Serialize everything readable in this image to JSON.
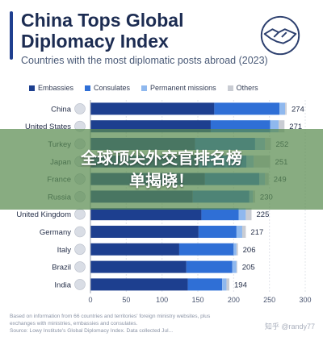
{
  "header": {
    "title": "China Tops Global Diplomacy Index",
    "subtitle": "Countries with the most diplomatic posts abroad (2023)"
  },
  "icons": {
    "header": "handshake-icon"
  },
  "colors": {
    "embassies": "#1d3f8f",
    "consulates": "#2f6fd6",
    "missions": "#8fb8ee",
    "others": "#c9ccd3",
    "title": "#1c2c52"
  },
  "banner": {
    "line1": "全球顶尖外交官排名榜",
    "line2": "单揭晓！"
  },
  "footnote": {
    "line1": "Based on information from 66 countries and territories' foreign ministry websites, plus",
    "line2": "exchanges with ministries, embassies and consulates.",
    "line3": "Source: Lowy Institute's Global Diplomacy Index. Data collected Jul...",
    "watermark": "知乎 @randy77"
  },
  "chart_data": {
    "type": "bar",
    "orientation": "horizontal",
    "stacked": true,
    "title": "China Tops Global Diplomacy Index",
    "subtitle": "Countries with the most diplomatic posts abroad (2023)",
    "xlim": [
      0,
      300
    ],
    "xticks": [
      0,
      50,
      100,
      150,
      200,
      250,
      300
    ],
    "grid": true,
    "legend_position": "top",
    "categories": [
      "China",
      "United States",
      "Turkey",
      "Japan",
      "France",
      "Russia",
      "United Kingdom",
      "Germany",
      "Italy",
      "Brazil",
      "India"
    ],
    "totals": [
      274,
      271,
      252,
      251,
      249,
      230,
      225,
      217,
      206,
      205,
      194
    ],
    "series": [
      {
        "name": "Embassies",
        "values": [
          173,
          168,
          146,
          152,
          160,
          143,
          155,
          151,
          124,
          134,
          136
        ]
      },
      {
        "name": "Consulates",
        "values": [
          91,
          83,
          84,
          66,
          76,
          79,
          52,
          53,
          76,
          64,
          48
        ]
      },
      {
        "name": "Permanent missions",
        "values": [
          8,
          12,
          14,
          10,
          8,
          5,
          10,
          8,
          4,
          6,
          6
        ]
      },
      {
        "name": "Others",
        "values": [
          2,
          8,
          8,
          23,
          5,
          3,
          8,
          5,
          2,
          1,
          4
        ]
      }
    ]
  }
}
